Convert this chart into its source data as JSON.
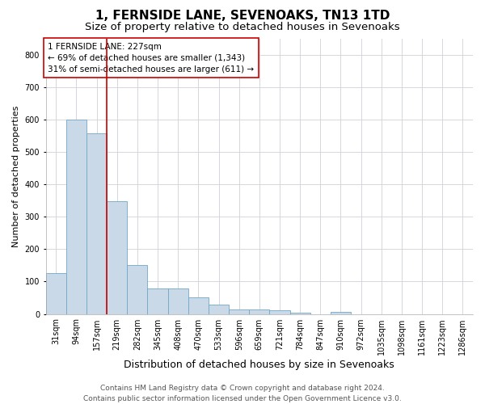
{
  "title1": "1, FERNSIDE LANE, SEVENOAKS, TN13 1TD",
  "title2": "Size of property relative to detached houses in Sevenoaks",
  "xlabel": "Distribution of detached houses by size in Sevenoaks",
  "ylabel": "Number of detached properties",
  "categories": [
    "31sqm",
    "94sqm",
    "157sqm",
    "219sqm",
    "282sqm",
    "345sqm",
    "408sqm",
    "470sqm",
    "533sqm",
    "596sqm",
    "659sqm",
    "721sqm",
    "784sqm",
    "847sqm",
    "910sqm",
    "972sqm",
    "1035sqm",
    "1098sqm",
    "1161sqm",
    "1223sqm",
    "1286sqm"
  ],
  "values": [
    125,
    600,
    558,
    347,
    150,
    78,
    78,
    52,
    30,
    15,
    13,
    11,
    5,
    0,
    7,
    0,
    0,
    0,
    0,
    0,
    0
  ],
  "bar_color": "#c9d9e8",
  "bar_edge_color": "#6fa8c8",
  "bar_linewidth": 0.6,
  "property_line_x": 2.5,
  "annotation_line1": "1 FERNSIDE LANE: 227sqm",
  "annotation_line2": "← 69% of detached houses are smaller (1,343)",
  "annotation_line3": "31% of semi-detached houses are larger (611) →",
  "annotation_box_color": "#ffffff",
  "annotation_box_edge": "#cc0000",
  "vline_color": "#cc0000",
  "grid_color": "#d0d0d8",
  "background_color": "#ffffff",
  "footer1": "Contains HM Land Registry data © Crown copyright and database right 2024.",
  "footer2": "Contains public sector information licensed under the Open Government Licence v3.0.",
  "ylim": [
    0,
    850
  ],
  "title1_fontsize": 11,
  "title2_fontsize": 9.5,
  "xlabel_fontsize": 9,
  "ylabel_fontsize": 8,
  "tick_fontsize": 7,
  "annotation_fontsize": 7.5,
  "footer_fontsize": 6.5
}
